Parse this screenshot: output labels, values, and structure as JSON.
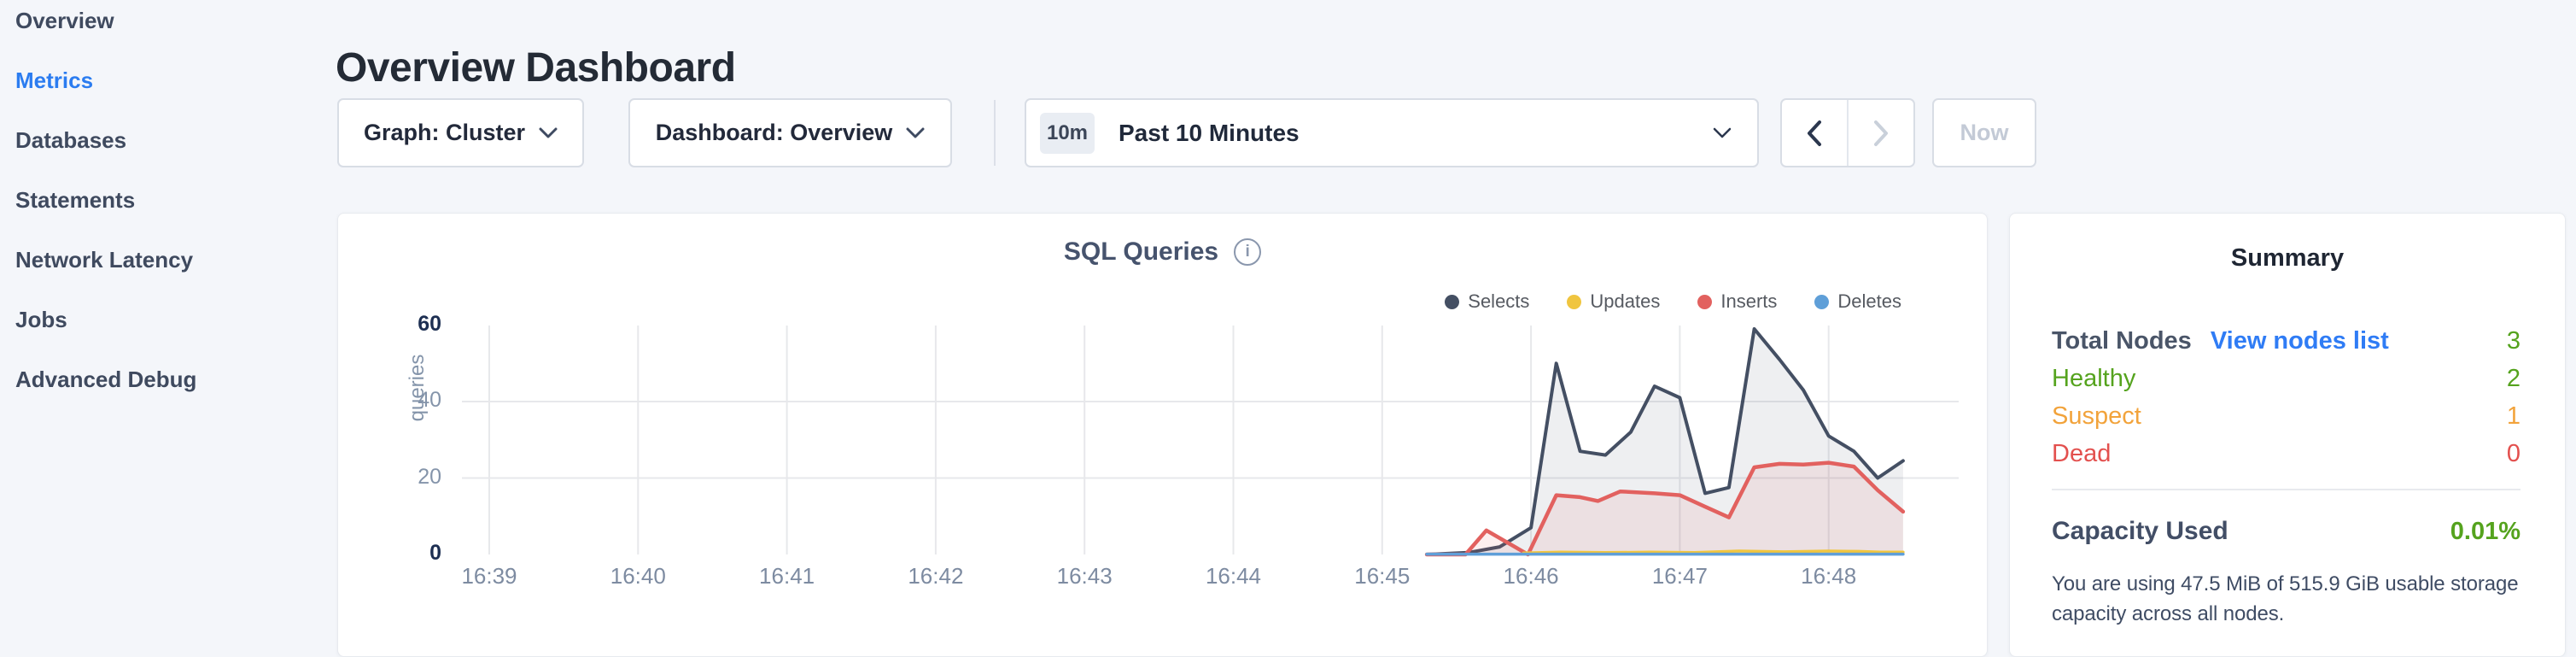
{
  "sidebar": {
    "items": [
      {
        "label": "Overview",
        "active": false
      },
      {
        "label": "Metrics",
        "active": true
      },
      {
        "label": "Databases",
        "active": false
      },
      {
        "label": "Statements",
        "active": false
      },
      {
        "label": "Network Latency",
        "active": false
      },
      {
        "label": "Jobs",
        "active": false
      },
      {
        "label": "Advanced Debug",
        "active": false
      }
    ],
    "active_color": "#2b7cf0",
    "text_color": "#3f4a5f"
  },
  "header": {
    "title": "Overview Dashboard"
  },
  "controls": {
    "graph_label": "Graph: Cluster",
    "dashboard_label": "Dashboard: Overview",
    "time_badge": "10m",
    "time_label": "Past 10 Minutes",
    "now_label": "Now"
  },
  "chart_card": {
    "title": "SQL Queries",
    "info_icon_glyph": "i",
    "ylabel": "queries",
    "legend": [
      {
        "label": "Selects",
        "color": "#444f63"
      },
      {
        "label": "Updates",
        "color": "#f0c53f"
      },
      {
        "label": "Inserts",
        "color": "#e2615f"
      },
      {
        "label": "Deletes",
        "color": "#5f9fd8"
      }
    ]
  },
  "chart_data": {
    "type": "area",
    "title": "SQL Queries",
    "ylabel": "queries",
    "x_ticks": [
      "16:39",
      "16:40",
      "16:41",
      "16:42",
      "16:43",
      "16:44",
      "16:45",
      "16:46",
      "16:47",
      "16:48"
    ],
    "y_ticks": [
      0,
      20,
      40,
      60
    ],
    "ylim": [
      0,
      60
    ],
    "x_unit": "minutes after 16:39",
    "grid": "on",
    "legend_position": "top-right",
    "series": [
      {
        "name": "Selects",
        "color": "#444f63",
        "fill": "rgba(68,79,99,0.09)",
        "points": [
          [
            6.3,
            0
          ],
          [
            6.58,
            0.5
          ],
          [
            6.79,
            2
          ],
          [
            7.0,
            7
          ],
          [
            7.17,
            50
          ],
          [
            7.33,
            27
          ],
          [
            7.5,
            26
          ],
          [
            7.67,
            32
          ],
          [
            7.83,
            44
          ],
          [
            8.0,
            41
          ],
          [
            8.17,
            16
          ],
          [
            8.33,
            17.5
          ],
          [
            8.5,
            59
          ],
          [
            8.67,
            51
          ],
          [
            8.83,
            43
          ],
          [
            9.0,
            31
          ],
          [
            9.17,
            27
          ],
          [
            9.33,
            20
          ],
          [
            9.5,
            24.5
          ]
        ]
      },
      {
        "name": "Inserts",
        "color": "#e2615f",
        "fill": "rgba(226,97,95,0.10)",
        "points": [
          [
            6.3,
            0
          ],
          [
            6.56,
            0
          ],
          [
            6.7,
            6.3
          ],
          [
            6.98,
            0
          ],
          [
            7.17,
            15.5
          ],
          [
            7.33,
            15
          ],
          [
            7.45,
            14
          ],
          [
            7.6,
            16.5
          ],
          [
            7.83,
            16
          ],
          [
            8.0,
            15.5
          ],
          [
            8.17,
            12.5
          ],
          [
            8.33,
            9.7
          ],
          [
            8.5,
            22.8
          ],
          [
            8.67,
            23.7
          ],
          [
            8.83,
            23.5
          ],
          [
            9.0,
            24
          ],
          [
            9.17,
            23
          ],
          [
            9.33,
            16.8
          ],
          [
            9.5,
            11.2
          ]
        ]
      },
      {
        "name": "Updates",
        "color": "#f0c53f",
        "fill": null,
        "points": [
          [
            6.95,
            0.4
          ],
          [
            7.2,
            0.6
          ],
          [
            7.5,
            0.5
          ],
          [
            7.8,
            0.6
          ],
          [
            8.1,
            0.5
          ],
          [
            8.4,
            0.9
          ],
          [
            8.7,
            0.7
          ],
          [
            9.0,
            0.9
          ],
          [
            9.2,
            0.8
          ],
          [
            9.35,
            0.6
          ],
          [
            9.5,
            0.6
          ]
        ]
      },
      {
        "name": "Deletes",
        "color": "#5f9fd8",
        "fill": null,
        "points": [
          [
            6.3,
            0.1
          ],
          [
            9.5,
            0.1
          ]
        ]
      }
    ]
  },
  "summary": {
    "title": "Summary",
    "rows": [
      {
        "label": "Total Nodes",
        "link": "View nodes list",
        "value": "3",
        "label_color": "#4a5568",
        "value_color": "#55a31e",
        "bold": true
      },
      {
        "label": "Healthy",
        "value": "2",
        "label_color": "#55a31e",
        "value_color": "#55a31e",
        "bold": false
      },
      {
        "label": "Suspect",
        "value": "1",
        "label_color": "#f2a33b",
        "value_color": "#f2a33b",
        "bold": false
      },
      {
        "label": "Dead",
        "value": "0",
        "label_color": "#e3504e",
        "value_color": "#e3504e",
        "bold": false
      }
    ],
    "capacity_label": "Capacity Used",
    "capacity_value": "0.01%",
    "description": "You are using 47.5 MiB of 515.9 GiB usable storage capacity across all nodes."
  },
  "colors": {
    "background": "#f4f6fa",
    "card_border": "#e7eaef",
    "grid_line": "#e7e8eb",
    "axis_tick_strong": "#1d2f52",
    "axis_tick_light": "#8494aa",
    "link_blue": "#2f7cf5",
    "healthy_green": "#55a31e",
    "suspect_orange": "#f2a33b",
    "dead_red": "#e3504e"
  }
}
